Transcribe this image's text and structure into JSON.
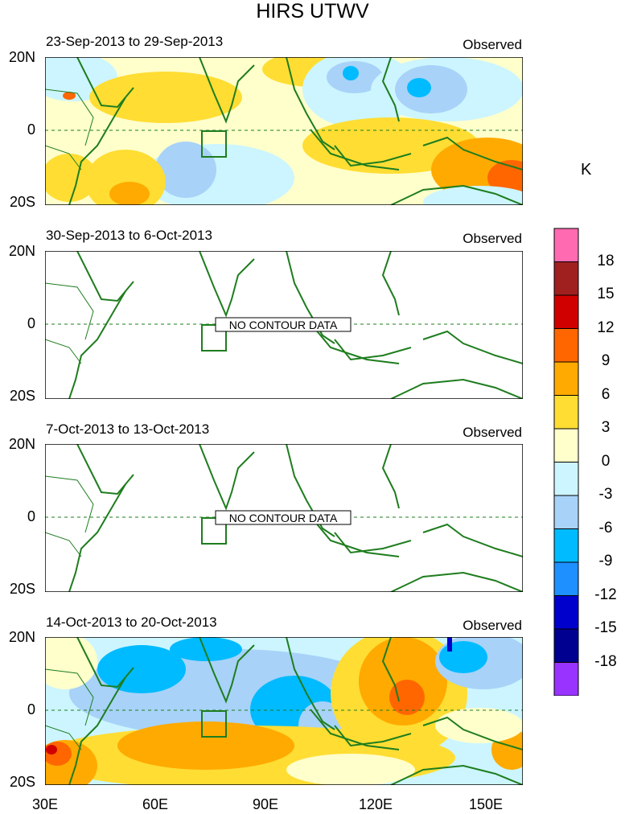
{
  "title": "HIRS UTWV",
  "colorbar": {
    "unit": "K",
    "labels": [
      "18",
      "15",
      "12",
      "9",
      "6",
      "3",
      "0",
      "-3",
      "-6",
      "-9",
      "-12",
      "-15",
      "-18"
    ],
    "colors": [
      "#ff6ab0",
      "#a02020",
      "#d00000",
      "#ff6600",
      "#ffaa00",
      "#ffdd33",
      "#ffffcc",
      "#ccf5ff",
      "#a8d2f8",
      "#00bbff",
      "#1e90ff",
      "#0000cc",
      "#000090",
      "#9933ff"
    ]
  },
  "axes": {
    "lat_labels": [
      "20N",
      "0",
      "20S"
    ],
    "lon_labels": [
      "30E",
      "60E",
      "90E",
      "120E",
      "150E"
    ]
  },
  "panels": [
    {
      "period": "23-Sep-2013 to 29-Sep-2013",
      "label": "Observed",
      "status": ""
    },
    {
      "period": "30-Sep-2013 to 6-Oct-2013",
      "label": "Observed",
      "status": "NO CONTOUR DATA"
    },
    {
      "period": "7-Oct-2013 to 13-Oct-2013",
      "label": "Observed",
      "status": "NO CONTOUR DATA"
    },
    {
      "period": "14-Oct-2013 to 20-Oct-2013",
      "label": "Observed",
      "status": ""
    }
  ],
  "chart_data": {
    "type": "heatmap",
    "variable": "HIRS UTWV",
    "unit": "K",
    "lon_range": [
      30,
      160
    ],
    "lat_range": [
      -20,
      20
    ],
    "contour_levels": [
      -18,
      -15,
      -12,
      -9,
      -6,
      -3,
      0,
      3,
      6,
      9,
      12,
      15,
      18
    ]
  }
}
